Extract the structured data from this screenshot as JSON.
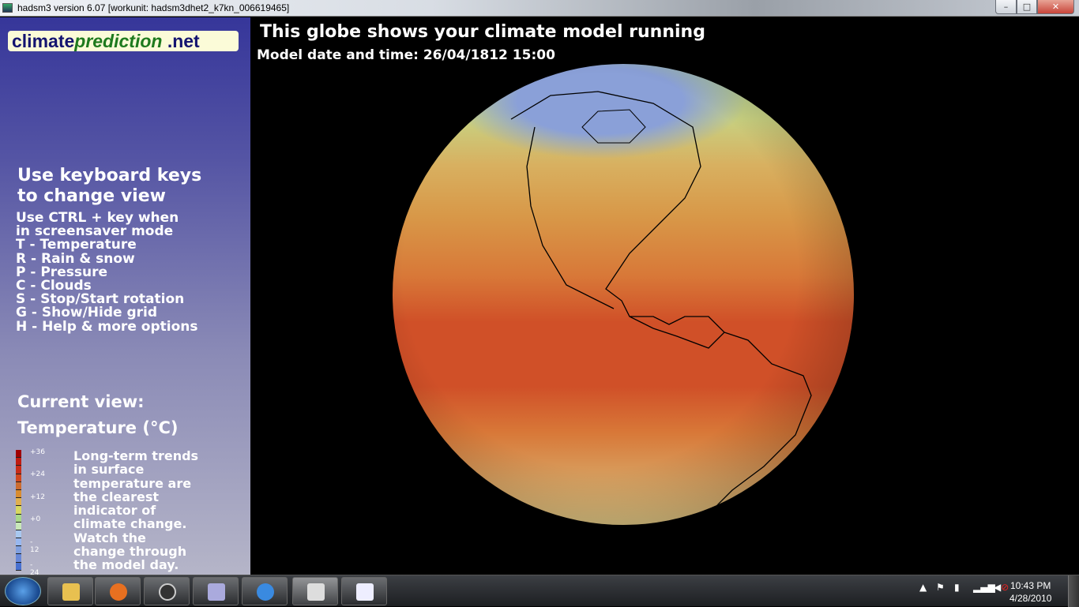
{
  "window": {
    "title": "hadsm3 version 6.07 [workunit: hadsm3dhet2_k7kn_006619465]",
    "min": "–",
    "max": "□",
    "close": "✕"
  },
  "logo": {
    "part1": "climate",
    "part2": "prediction",
    "part3": ".net"
  },
  "sidebar": {
    "heading": [
      "Use keyboard keys",
      "to change view"
    ],
    "keys": [
      "Use CTRL + key when",
      "in screensaver mode",
      "T - Temperature",
      "R - Rain & snow",
      "P - Pressure",
      "C - Clouds",
      "S - Stop/Start rotation",
      "G - Show/Hide grid",
      "H - Help & more options"
    ],
    "current_view_label": "Current view:",
    "current_view": "Temperature (°C)",
    "legend": {
      "colors": [
        "#a00000",
        "#c01c10",
        "#c82c18",
        "#d04820",
        "#cc6c30",
        "#d88c30",
        "#e0b050",
        "#d8d860",
        "#a8d888",
        "#c8e8b8",
        "#a8c8f0",
        "#98b8f0",
        "#80a0e0",
        "#6888d8",
        "#4870d0"
      ],
      "ticks": [
        "+36",
        "+24",
        "+12",
        "+0",
        "- 12",
        "- 24"
      ]
    },
    "description": [
      "Long-term trends",
      "in surface",
      "temperature are",
      "the clearest",
      "indicator of",
      "climate change.",
      "Watch the",
      "change through",
      "the model day."
    ]
  },
  "globe": {
    "title": "This globe shows your climate model running",
    "date": "Model date and time: 26/04/1812 15:00"
  },
  "taskbar": {
    "time": "10:43 PM",
    "date": "4/28/2010",
    "tray_icons": [
      "show-hidden-icon",
      "action-center-flag-icon",
      "power-icon",
      "network-signal-icon",
      "volume-muted-icon"
    ]
  }
}
